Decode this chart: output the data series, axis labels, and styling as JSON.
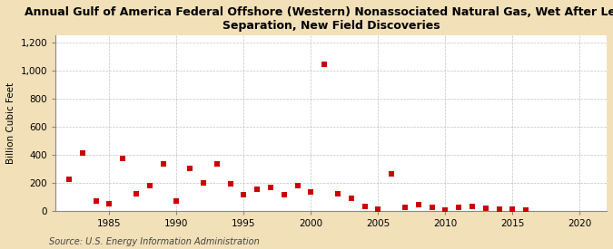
{
  "title": "Annual Gulf of America Federal Offshore (Western) Nonassociated Natural Gas, Wet After Lease\nSeparation, New Field Discoveries",
  "ylabel": "Billion Cubic Feet",
  "source": "Source: U.S. Energy Information Administration",
  "background_color": "#f2e0b8",
  "plot_background": "#ffffff",
  "years": [
    1982,
    1983,
    1984,
    1985,
    1986,
    1987,
    1988,
    1989,
    1990,
    1991,
    1992,
    1993,
    1994,
    1995,
    1996,
    1997,
    1998,
    1999,
    2000,
    2001,
    2002,
    2003,
    2004,
    2005,
    2006,
    2007,
    2008,
    2009,
    2010,
    2011,
    2012,
    2013,
    2014,
    2015,
    2016
  ],
  "values": [
    220,
    410,
    65,
    50,
    370,
    120,
    175,
    330,
    70,
    300,
    200,
    330,
    190,
    110,
    150,
    165,
    110,
    175,
    130,
    1040,
    120,
    90,
    30,
    10,
    260,
    25,
    45,
    25,
    5,
    20,
    30,
    15,
    10,
    10,
    5
  ],
  "marker_color": "#cc0000",
  "marker_size": 4,
  "xlim": [
    1981,
    2022
  ],
  "ylim": [
    0,
    1250
  ],
  "yticks": [
    0,
    200,
    400,
    600,
    800,
    1000,
    1200
  ],
  "ytick_labels": [
    "0",
    "200",
    "400",
    "600",
    "800",
    "1,000",
    "1,200"
  ],
  "xticks": [
    1985,
    1990,
    1995,
    2000,
    2005,
    2010,
    2015,
    2020
  ],
  "grid_color": "#aaaaaa",
  "title_fontsize": 9,
  "axis_fontsize": 7.5,
  "source_fontsize": 7
}
